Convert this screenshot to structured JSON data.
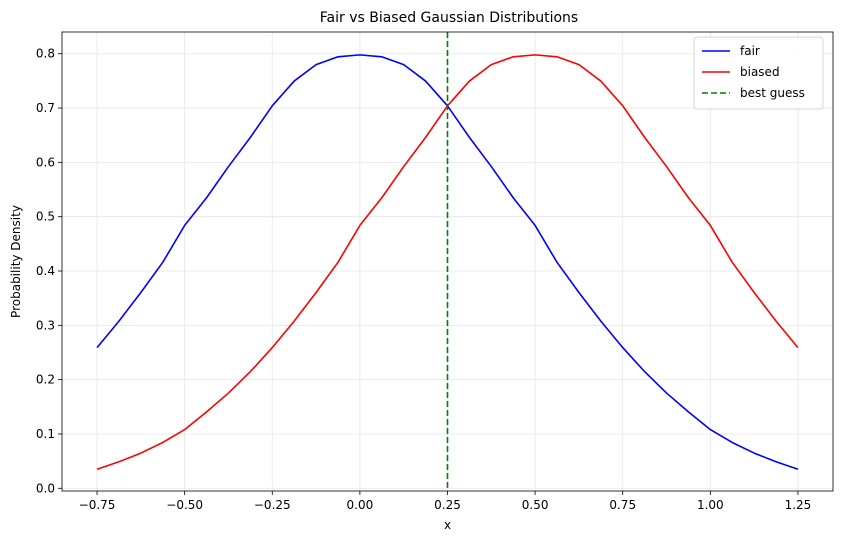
{
  "chart_data": {
    "type": "line",
    "title": "Fair vs Biased Gaussian Distributions",
    "xlabel": "x",
    "ylabel": "Probability Density",
    "xlim": [
      -0.85,
      1.35
    ],
    "ylim": [
      -0.005,
      0.84
    ],
    "xticks": [
      -0.75,
      -0.5,
      -0.25,
      0.0,
      0.25,
      0.5,
      0.75,
      1.0,
      1.25
    ],
    "xtick_labels": [
      "−0.75",
      "−0.50",
      "−0.25",
      "0.00",
      "0.25",
      "0.50",
      "0.75",
      "1.00",
      "1.25"
    ],
    "yticks": [
      0.0,
      0.1,
      0.2,
      0.3,
      0.4,
      0.5,
      0.6,
      0.7,
      0.8
    ],
    "ytick_labels": [
      "0.0",
      "0.1",
      "0.2",
      "0.3",
      "0.4",
      "0.5",
      "0.6",
      "0.7",
      "0.8"
    ],
    "grid": true,
    "legend_position": "top-right",
    "series": [
      {
        "name": "fair",
        "color": "#0000ff",
        "style": "solid",
        "x": [
          -0.75,
          -0.6875,
          -0.625,
          -0.5625,
          -0.5,
          -0.4375,
          -0.375,
          -0.3125,
          -0.25,
          -0.1875,
          -0.125,
          -0.0625,
          0.0,
          0.0625,
          0.125,
          0.1875,
          0.25,
          0.3125,
          0.375,
          0.4375,
          0.5,
          0.5625,
          0.625,
          0.6875,
          0.75,
          0.8125,
          0.875,
          0.9375,
          1.0,
          1.0625,
          1.125,
          1.1875,
          1.25
        ],
        "y": [
          0.259,
          0.3077,
          0.3604,
          0.416,
          0.4839,
          0.5349,
          0.5923,
          0.646,
          0.7041,
          0.7497,
          0.7799,
          0.7944,
          0.7979,
          0.7944,
          0.7799,
          0.7497,
          0.7041,
          0.646,
          0.5923,
          0.5349,
          0.4839,
          0.416,
          0.3604,
          0.3077,
          0.259,
          0.2148,
          0.1753,
          0.1407,
          0.108,
          0.0843,
          0.0648,
          0.0488,
          0.035
        ]
      },
      {
        "name": "biased",
        "color": "#ff0000",
        "style": "solid",
        "x": [
          -0.75,
          -0.6875,
          -0.625,
          -0.5625,
          -0.5,
          -0.4375,
          -0.375,
          -0.3125,
          -0.25,
          -0.1875,
          -0.125,
          -0.0625,
          0.0,
          0.0625,
          0.125,
          0.1875,
          0.25,
          0.3125,
          0.375,
          0.4375,
          0.5,
          0.5625,
          0.625,
          0.6875,
          0.75,
          0.8125,
          0.875,
          0.9375,
          1.0,
          1.0625,
          1.125,
          1.1875,
          1.25
        ],
        "y": [
          0.035,
          0.0488,
          0.0648,
          0.0843,
          0.108,
          0.1407,
          0.1753,
          0.2148,
          0.259,
          0.3077,
          0.3604,
          0.416,
          0.4839,
          0.5349,
          0.5923,
          0.646,
          0.7041,
          0.7497,
          0.7799,
          0.7944,
          0.7979,
          0.7944,
          0.7799,
          0.7497,
          0.7041,
          0.646,
          0.5923,
          0.5349,
          0.4839,
          0.416,
          0.3604,
          0.3077,
          0.259
        ]
      },
      {
        "name": "best guess",
        "color": "#008000",
        "style": "dashed",
        "type": "vline",
        "x": 0.25
      }
    ]
  }
}
